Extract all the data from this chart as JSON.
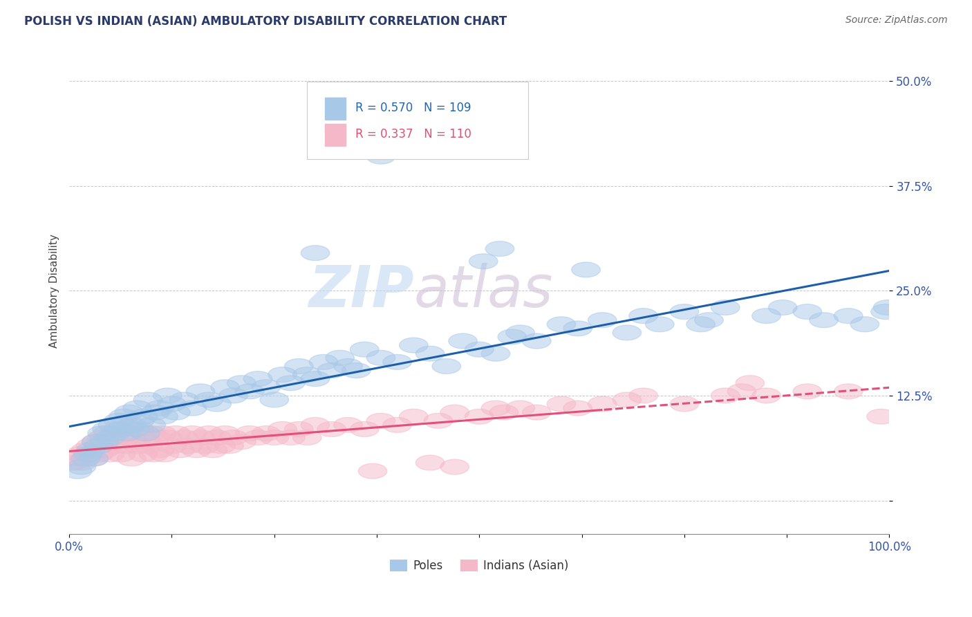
{
  "title": "POLISH VS INDIAN (ASIAN) AMBULATORY DISABILITY CORRELATION CHART",
  "source": "Source: ZipAtlas.com",
  "ylabel": "Ambulatory Disability",
  "poles_R": 0.57,
  "poles_N": 109,
  "indians_R": 0.337,
  "indians_N": 110,
  "poles_color": "#a8c8e8",
  "poles_line_color": "#1a5fa8",
  "indians_color": "#f5b8c8",
  "indians_line_color": "#e0507a",
  "background_color": "#ffffff",
  "grid_color": "#c8c8c8",
  "watermark_zip": "ZIP",
  "watermark_atlas": "atlas",
  "legend_label_1": "Poles",
  "legend_label_2": "Indians (Asian)",
  "xlim": [
    0.0,
    100.0
  ],
  "ylim": [
    -4.0,
    54.0
  ],
  "poles_x": [
    1.0,
    1.5,
    2.0,
    2.3,
    2.6,
    3.0,
    3.3,
    3.6,
    4.0,
    4.3,
    4.6,
    5.0,
    5.3,
    5.6,
    6.0,
    6.3,
    6.6,
    7.0,
    7.3,
    7.6,
    8.0,
    8.3,
    8.6,
    9.0,
    9.3,
    9.6,
    10.0,
    10.5,
    11.0,
    11.5,
    12.0,
    12.5,
    13.0,
    14.0,
    15.0,
    16.0,
    17.0,
    18.0,
    19.0,
    20.0,
    21.0,
    22.0,
    23.0,
    24.0,
    25.0,
    26.0,
    27.0,
    28.0,
    29.0,
    30.0,
    31.0,
    32.0,
    33.0,
    34.0,
    35.0,
    36.0,
    38.0,
    40.0,
    42.0,
    44.0,
    46.0,
    48.0,
    50.0,
    52.0,
    54.0,
    55.0,
    57.0,
    60.0,
    62.0,
    65.0,
    68.0,
    70.0,
    72.0,
    75.0,
    78.0,
    80.0,
    85.0,
    87.0,
    90.0,
    92.0,
    95.0,
    97.0,
    99.5,
    99.8,
    77.0,
    63.0,
    38.0,
    30.0,
    52.5,
    50.5
  ],
  "poles_y": [
    3.5,
    4.0,
    5.0,
    5.5,
    6.0,
    5.0,
    7.0,
    6.5,
    8.0,
    7.0,
    8.5,
    7.5,
    9.0,
    8.0,
    9.5,
    8.5,
    10.0,
    8.0,
    10.5,
    9.0,
    8.5,
    11.0,
    9.5,
    10.0,
    8.0,
    12.0,
    9.0,
    10.5,
    11.0,
    10.0,
    12.5,
    11.5,
    10.5,
    12.0,
    11.0,
    13.0,
    12.0,
    11.5,
    13.5,
    12.5,
    14.0,
    13.0,
    14.5,
    13.5,
    12.0,
    15.0,
    14.0,
    16.0,
    15.0,
    14.5,
    16.5,
    15.5,
    17.0,
    16.0,
    15.5,
    18.0,
    17.0,
    16.5,
    18.5,
    17.5,
    16.0,
    19.0,
    18.0,
    17.5,
    19.5,
    20.0,
    19.0,
    21.0,
    20.5,
    21.5,
    20.0,
    22.0,
    21.0,
    22.5,
    21.5,
    23.0,
    22.0,
    23.0,
    22.5,
    21.5,
    22.0,
    21.0,
    22.5,
    23.0,
    21.0,
    27.5,
    41.0,
    29.5,
    30.0,
    28.5
  ],
  "indians_x": [
    0.5,
    1.0,
    1.3,
    1.6,
    2.0,
    2.3,
    2.6,
    3.0,
    3.3,
    3.6,
    4.0,
    4.3,
    4.6,
    5.0,
    5.3,
    5.6,
    6.0,
    6.3,
    6.6,
    7.0,
    7.3,
    7.6,
    8.0,
    8.3,
    8.6,
    9.0,
    9.3,
    9.6,
    10.0,
    10.3,
    10.6,
    11.0,
    11.3,
    11.6,
    12.0,
    12.5,
    13.0,
    13.5,
    14.0,
    14.5,
    15.0,
    15.5,
    16.0,
    16.5,
    17.0,
    17.5,
    18.0,
    18.5,
    19.0,
    19.5,
    20.0,
    21.0,
    22.0,
    23.0,
    24.0,
    25.0,
    26.0,
    27.0,
    28.0,
    29.0,
    30.0,
    32.0,
    34.0,
    36.0,
    38.0,
    40.0,
    42.0,
    45.0,
    47.0,
    50.0,
    53.0,
    55.0,
    57.0,
    60.0,
    62.0,
    65.0,
    68.0,
    70.0,
    75.0,
    80.0,
    82.0,
    85.0,
    90.0,
    95.0,
    99.0,
    83.0,
    47.0,
    52.0,
    37.0,
    44.0
  ],
  "indians_y": [
    4.5,
    5.0,
    5.5,
    4.5,
    6.0,
    5.5,
    6.5,
    5.0,
    7.0,
    5.5,
    7.5,
    6.0,
    8.0,
    5.5,
    7.0,
    6.5,
    8.5,
    5.5,
    7.5,
    6.5,
    8.0,
    5.0,
    7.0,
    6.5,
    8.5,
    5.5,
    7.0,
    6.5,
    8.0,
    5.5,
    7.5,
    6.0,
    8.0,
    5.5,
    7.5,
    6.5,
    8.0,
    6.0,
    7.5,
    6.5,
    8.0,
    6.0,
    7.5,
    6.5,
    8.0,
    6.0,
    7.5,
    6.5,
    8.0,
    6.5,
    7.5,
    7.0,
    8.0,
    7.5,
    8.0,
    7.5,
    8.5,
    7.5,
    8.5,
    7.5,
    9.0,
    8.5,
    9.0,
    8.5,
    9.5,
    9.0,
    10.0,
    9.5,
    10.5,
    10.0,
    10.5,
    11.0,
    10.5,
    11.5,
    11.0,
    11.5,
    12.0,
    12.5,
    11.5,
    12.5,
    13.0,
    12.5,
    13.0,
    13.0,
    10.0,
    14.0,
    4.0,
    11.0,
    3.5,
    4.5
  ]
}
